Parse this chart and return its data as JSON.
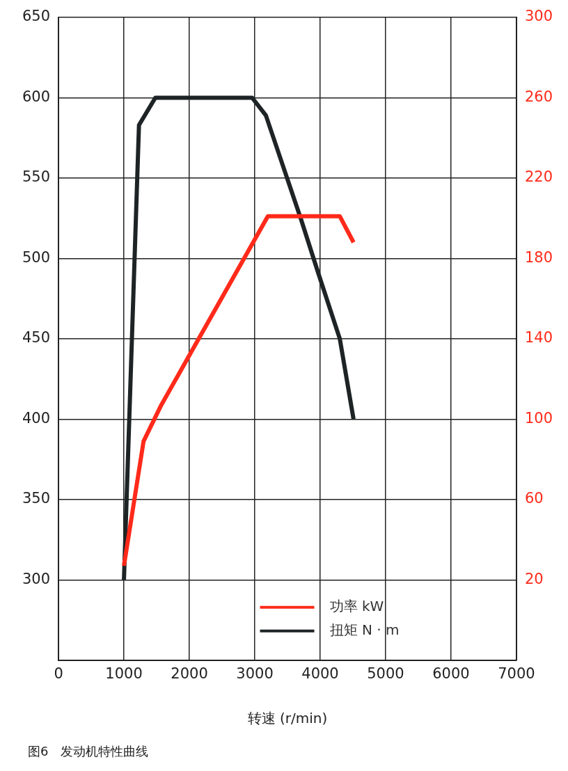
{
  "chart_data": {
    "type": "line",
    "title": "图6　发动机特性曲线",
    "xlabel": "转速 (r/min)",
    "xlim": [
      0,
      7000
    ],
    "xticks": [
      0,
      1000,
      2000,
      3000,
      4000,
      5000,
      6000,
      7000
    ],
    "ylim": [
      250,
      650
    ],
    "yticks": [
      300,
      350,
      400,
      450,
      500,
      550,
      600,
      650
    ],
    "y2lim": [
      -20,
      300
    ],
    "y2ticks": [
      20,
      60,
      100,
      140,
      180,
      220,
      260,
      300
    ],
    "grid": true,
    "legend": "bottom",
    "marker": "none",
    "line_style": "solid",
    "series": [
      {
        "name": "功率 kW",
        "color": "#ff2a1a",
        "axis": "y2",
        "x": [
          1000,
          1300,
          1570,
          3010,
          3200,
          4300,
          4510
        ],
        "values": [
          27,
          89,
          107,
          190,
          201,
          201,
          188
        ]
      },
      {
        "name": "扭矩 N · m",
        "color": "#1e2426",
        "x": [
          1000,
          1230,
          1480,
          2960,
          3170,
          3710,
          3970,
          4300,
          4510
        ],
        "values": [
          300,
          583,
          600,
          600,
          589,
          524,
          491,
          450,
          400
        ]
      }
    ]
  }
}
